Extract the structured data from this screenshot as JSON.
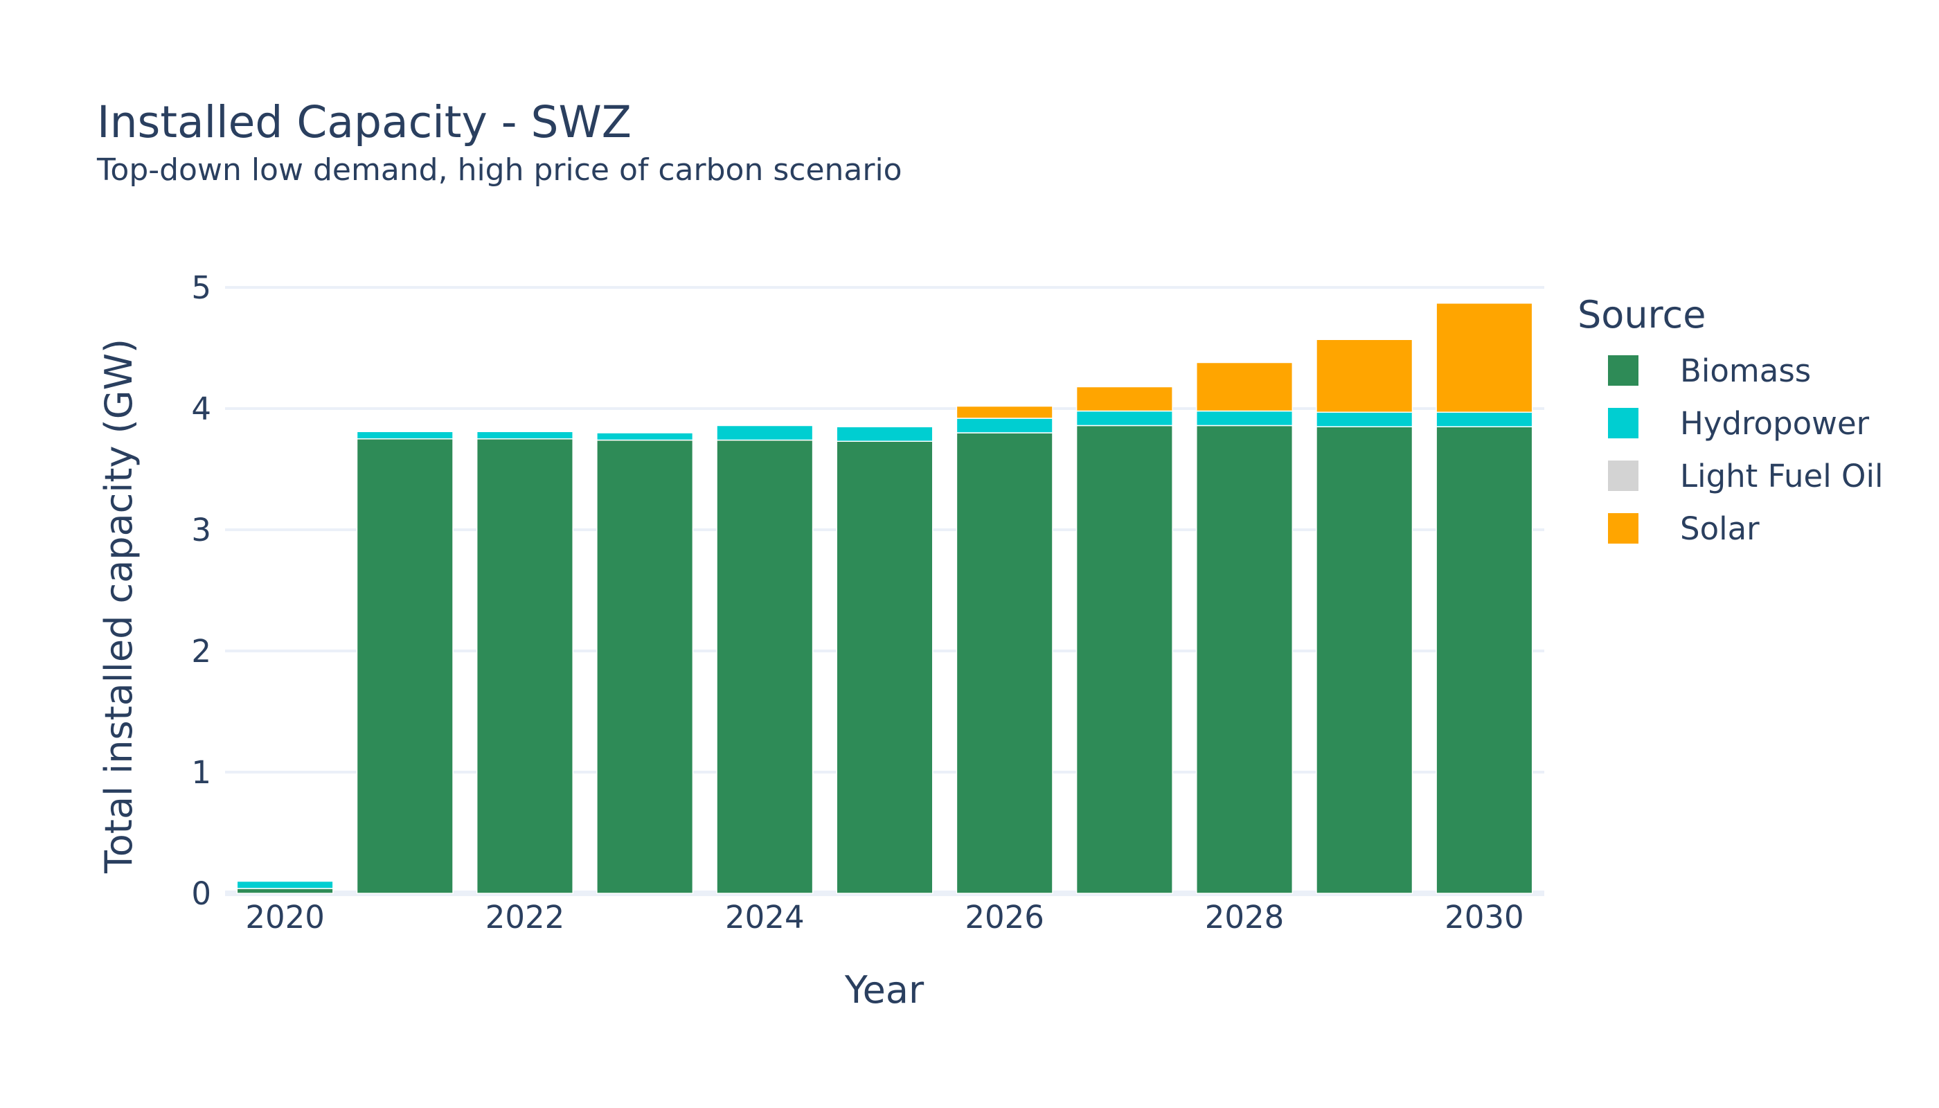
{
  "chart_data": {
    "type": "bar",
    "stacked": true,
    "title": "Installed Capacity - SWZ",
    "subtitle": "Top-down low demand, high price of carbon scenario",
    "xlabel": "Year",
    "ylabel": "Total installed capacity (GW)",
    "ylim": [
      0,
      5.2
    ],
    "xticks": [
      2020,
      2022,
      2024,
      2026,
      2028,
      2030
    ],
    "yticks": [
      0,
      1,
      2,
      3,
      4,
      5
    ],
    "grid": true,
    "legend": {
      "title": "Source",
      "placement": "right"
    },
    "x": [
      2020,
      2021,
      2022,
      2023,
      2024,
      2025,
      2026,
      2027,
      2028,
      2029,
      2030
    ],
    "series": [
      {
        "name": "Biomass",
        "color": "#2e8b57",
        "values": [
          0.04,
          3.75,
          3.75,
          3.74,
          3.74,
          3.73,
          3.8,
          3.86,
          3.86,
          3.85,
          3.85
        ]
      },
      {
        "name": "Hydropower",
        "color": "#00ced1",
        "values": [
          0.06,
          0.06,
          0.06,
          0.06,
          0.12,
          0.12,
          0.12,
          0.12,
          0.12,
          0.12,
          0.12
        ]
      },
      {
        "name": "Light Fuel Oil",
        "color": "#d3d3d3",
        "values": [
          0,
          0,
          0,
          0,
          0,
          0,
          0,
          0,
          0,
          0,
          0
        ]
      },
      {
        "name": "Solar",
        "color": "#ffa500",
        "values": [
          0,
          0,
          0,
          0,
          0,
          0,
          0.1,
          0.2,
          0.4,
          0.6,
          0.9
        ]
      }
    ]
  }
}
